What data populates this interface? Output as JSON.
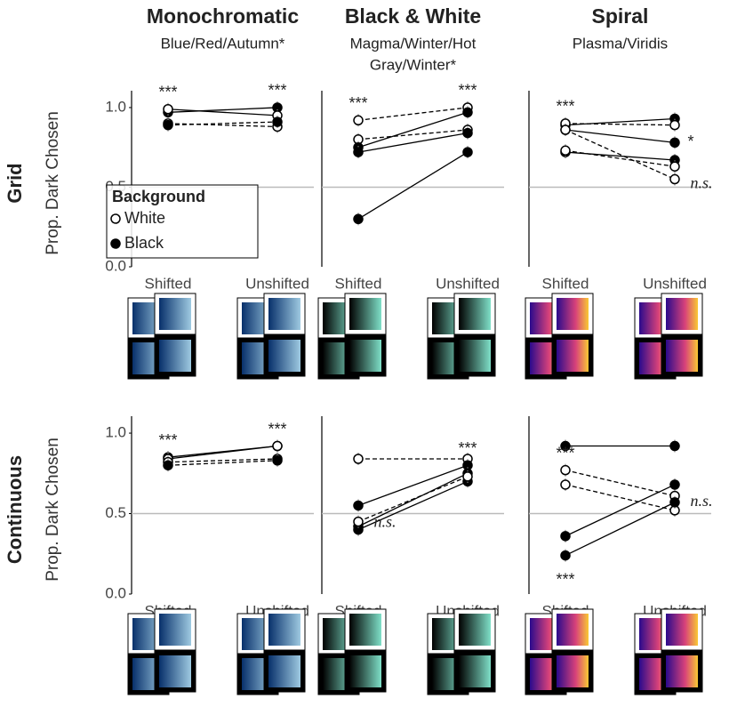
{
  "chart_data": [
    {
      "type": "line",
      "title": "Monochromatic",
      "subtitle": [
        "Blue/Red/Autumn*"
      ],
      "row_label": "Grid",
      "ylabel": "Prop. Dark Chosen",
      "categories": [
        "Shifted",
        "Unshifted"
      ],
      "ylim": [
        0,
        1.05
      ],
      "yticks": [
        {
          "value": 0,
          "label": "0.0"
        },
        0.5,
        {
          "value": 1,
          "label": "1.0"
        }
      ],
      "reference": 0.5,
      "legend": {
        "title": "Background",
        "entries": [
          "White",
          "Black"
        ]
      },
      "series": [
        {
          "name": "Black",
          "dashed": false,
          "values": [
            0.97,
            1.0
          ]
        },
        {
          "name": "White",
          "dashed": false,
          "values": [
            0.99,
            0.95
          ]
        },
        {
          "name": "White",
          "dashed": true,
          "values": [
            0.9,
            0.88
          ]
        },
        {
          "name": "Black",
          "dashed": true,
          "values": [
            0.89,
            0.91
          ]
        }
      ],
      "annotations": [
        {
          "text": "***",
          "category": 0,
          "series": 1
        },
        {
          "text": "***",
          "category": 1,
          "series": 0
        }
      ]
    },
    {
      "type": "line",
      "title": "Black & White",
      "subtitle": [
        "Magma/Winter/Hot",
        "Gray/Winter*"
      ],
      "categories": [
        "Shifted",
        "Unshifted"
      ],
      "ylim": [
        0,
        1.05
      ],
      "reference": 0.5,
      "series": [
        {
          "name": "White",
          "dashed": true,
          "values": [
            0.92,
            1.0
          ]
        },
        {
          "name": "White",
          "dashed": true,
          "values": [
            0.8,
            0.86
          ]
        },
        {
          "name": "Black",
          "dashed": false,
          "values": [
            0.75,
            0.97
          ]
        },
        {
          "name": "Black",
          "dashed": false,
          "values": [
            0.72,
            0.84
          ]
        },
        {
          "name": "Black",
          "dashed": false,
          "values": [
            0.3,
            0.72
          ]
        }
      ],
      "annotations": [
        {
          "text": "***",
          "category": 0,
          "series": 0
        },
        {
          "text": "***",
          "category": 1,
          "series": 0
        }
      ]
    },
    {
      "type": "line",
      "title": "Spiral",
      "subtitle": [
        "Plasma/Viridis"
      ],
      "categories": [
        "Shifted",
        "Unshifted"
      ],
      "ylim": [
        0,
        1.05
      ],
      "reference": 0.5,
      "series": [
        {
          "name": "Black",
          "dashed": false,
          "values": [
            0.89,
            0.93
          ]
        },
        {
          "name": "White",
          "dashed": true,
          "values": [
            0.9,
            0.89
          ]
        },
        {
          "name": "Black",
          "dashed": false,
          "values": [
            0.86,
            0.78
          ]
        },
        {
          "name": "Black",
          "dashed": false,
          "values": [
            0.72,
            0.67
          ]
        },
        {
          "name": "White",
          "dashed": true,
          "values": [
            0.86,
            0.55
          ]
        },
        {
          "name": "White",
          "dashed": true,
          "values": [
            0.73,
            0.63
          ]
        }
      ],
      "annotations": [
        {
          "text": "***",
          "category": 0,
          "series": 1
        },
        {
          "text": "*",
          "category": 1,
          "series": 2
        },
        {
          "text": "n.s.",
          "category": 1,
          "series": 5
        }
      ]
    },
    {
      "type": "line",
      "row_label": "Continuous",
      "ylabel": "Prop. Dark Chosen",
      "categories": [
        "Shifted",
        "Unshifted"
      ],
      "ylim": [
        0,
        1.05
      ],
      "yticks": [
        {
          "value": 0,
          "label": "0.0"
        },
        0.5,
        {
          "value": 1,
          "label": "1.0"
        }
      ],
      "reference": 0.5,
      "series": [
        {
          "name": "Black",
          "dashed": false,
          "values": [
            0.85,
            0.92
          ]
        },
        {
          "name": "White",
          "dashed": false,
          "values": [
            0.84,
            0.92
          ]
        },
        {
          "name": "White",
          "dashed": true,
          "values": [
            0.82,
            0.84
          ]
        },
        {
          "name": "Black",
          "dashed": true,
          "values": [
            0.8,
            0.83
          ]
        }
      ],
      "annotations": [
        {
          "text": "***",
          "category": 0,
          "series": 0
        },
        {
          "text": "***",
          "category": 1,
          "series": 0
        }
      ]
    },
    {
      "type": "line",
      "categories": [
        "Shifted",
        "Unshifted"
      ],
      "ylim": [
        0,
        1.05
      ],
      "reference": 0.5,
      "series": [
        {
          "name": "White",
          "dashed": true,
          "values": [
            0.84,
            0.84
          ]
        },
        {
          "name": "Black",
          "dashed": false,
          "values": [
            0.55,
            0.8
          ]
        },
        {
          "name": "Black",
          "dashed": false,
          "values": [
            0.42,
            0.75
          ]
        },
        {
          "name": "Black",
          "dashed": false,
          "values": [
            0.4,
            0.7
          ]
        },
        {
          "name": "White",
          "dashed": true,
          "values": [
            0.45,
            0.73
          ]
        }
      ],
      "annotations": [
        {
          "text": "n.s.",
          "category": 0,
          "series": 1
        },
        {
          "text": "***",
          "category": 1,
          "series": 1
        }
      ]
    },
    {
      "type": "line",
      "categories": [
        "Shifted",
        "Unshifted"
      ],
      "ylim": [
        0,
        1.05
      ],
      "reference": 0.5,
      "series": [
        {
          "name": "Black",
          "dashed": false,
          "values": [
            0.92,
            0.92
          ]
        },
        {
          "name": "White",
          "dashed": true,
          "values": [
            0.77,
            0.61
          ]
        },
        {
          "name": "White",
          "dashed": true,
          "values": [
            0.68,
            0.52
          ]
        },
        {
          "name": "Black",
          "dashed": false,
          "values": [
            0.36,
            0.68
          ]
        },
        {
          "name": "Black",
          "dashed": false,
          "values": [
            0.24,
            0.57
          ]
        }
      ],
      "annotations": [
        {
          "text": "***",
          "category": 0,
          "series": 1
        },
        {
          "text": "***",
          "category": 0,
          "series": 4
        },
        {
          "text": "n.s.",
          "category": 1,
          "series": 3
        }
      ]
    }
  ]
}
